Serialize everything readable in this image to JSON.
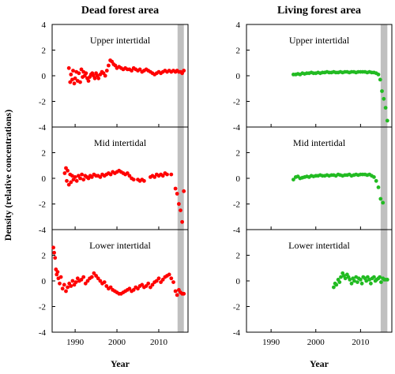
{
  "figure": {
    "ylabel": "Density (relative concentrations)"
  },
  "chart_data": [
    {
      "type": "scatter",
      "title": "Dead forest area",
      "xlabel": "Year",
      "color": "#ff0000",
      "shaded_band": [
        2014.5,
        2016.0
      ],
      "xlim": [
        1984.5,
        2017.0
      ],
      "xticks": [
        1990,
        2000,
        2010
      ],
      "ylim": [
        -4,
        4
      ],
      "yticks": [
        -4,
        -2,
        0,
        2,
        4
      ],
      "panels": [
        {
          "name": "Upper intertidal",
          "x": [
            1988.5,
            1988.8,
            1989.0,
            1989.3,
            1989.5,
            1989.8,
            1990.0,
            1990.3,
            1990.6,
            1990.9,
            1991.2,
            1991.5,
            1991.8,
            1992.0,
            1992.3,
            1992.6,
            1992.9,
            1993.2,
            1993.5,
            1993.8,
            1994.1,
            1994.4,
            1994.7,
            1995.0,
            1995.3,
            1995.6,
            1996.0,
            1996.4,
            1996.8,
            1997.2,
            1997.6,
            1998.0,
            1998.4,
            1998.8,
            1999.2,
            1999.6,
            2000.0,
            2000.5,
            2001.0,
            2001.5,
            2002.0,
            2002.5,
            2003.0,
            2003.5,
            2004.0,
            2004.5,
            2005.0,
            2005.5,
            2006.0,
            2006.5,
            2007.0,
            2007.5,
            2008.0,
            2008.5,
            2009.0,
            2009.5,
            2010.0,
            2010.5,
            2011.0,
            2011.5,
            2012.0,
            2012.5,
            2013.0,
            2013.5,
            2014.0,
            2014.4,
            2014.8,
            2015.2,
            2015.6,
            2016.0
          ],
          "y": [
            0.6,
            -0.5,
            0.1,
            -0.3,
            0.4,
            -0.6,
            -0.2,
            0.3,
            -0.4,
            0.2,
            -0.5,
            0.5,
            -0.1,
            0.3,
            0.0,
            0.2,
            -0.2,
            -0.4,
            -0.1,
            0.1,
            0.2,
            0.0,
            -0.2,
            0.2,
            0.0,
            -0.2,
            0.1,
            0.3,
            0.2,
            0.0,
            0.4,
            0.8,
            1.2,
            1.1,
            0.9,
            0.8,
            0.6,
            0.7,
            0.6,
            0.5,
            0.6,
            0.5,
            0.5,
            0.4,
            0.6,
            0.5,
            0.4,
            0.5,
            0.3,
            0.4,
            0.5,
            0.4,
            0.3,
            0.2,
            0.1,
            0.2,
            0.3,
            0.2,
            0.3,
            0.4,
            0.3,
            0.4,
            0.3,
            0.4,
            0.3,
            0.4,
            0.3,
            0.3,
            0.2,
            0.4
          ]
        },
        {
          "name": "Mid intertidal",
          "x": [
            1987.5,
            1987.8,
            1988.0,
            1988.2,
            1988.5,
            1988.8,
            1989.0,
            1989.3,
            1989.6,
            1990.0,
            1990.4,
            1990.8,
            1991.2,
            1991.6,
            1992.0,
            1992.4,
            1992.8,
            1993.2,
            1993.6,
            1994.0,
            1994.5,
            1995.0,
            1995.5,
            1996.0,
            1996.5,
            1997.0,
            1997.5,
            1998.0,
            1998.5,
            1999.0,
            1999.5,
            2000.0,
            2000.5,
            2001.0,
            2001.5,
            2002.0,
            2002.5,
            2003.0,
            2003.5,
            2004.0,
            2005.0,
            2005.5,
            2006.0,
            2006.5,
            2008.0,
            2008.5,
            2009.0,
            2009.5,
            2010.0,
            2010.5,
            2011.0,
            2011.5,
            2012.0,
            2013.0,
            2014.0,
            2014.4,
            2014.8,
            2015.2,
            2015.6,
            2016.0
          ],
          "y": [
            0.4,
            0.8,
            -0.2,
            0.6,
            -0.5,
            0.3,
            -0.3,
            0.2,
            -0.1,
            0.1,
            -0.2,
            0.2,
            0.0,
            0.3,
            -0.1,
            0.2,
            0.1,
            0.0,
            0.2,
            0.1,
            0.3,
            0.2,
            0.2,
            0.1,
            0.3,
            0.2,
            0.3,
            0.4,
            0.3,
            0.5,
            0.4,
            0.5,
            0.6,
            0.5,
            0.4,
            0.3,
            0.4,
            0.2,
            0.0,
            -0.1,
            -0.1,
            -0.2,
            -0.1,
            -0.2,
            0.1,
            0.2,
            0.1,
            0.3,
            0.2,
            0.3,
            0.2,
            0.4,
            0.3,
            0.3,
            -0.8,
            -1.2,
            -2.0,
            -2.5,
            -3.4,
            -1.0
          ]
        },
        {
          "name": "Lower intertidal",
          "x": [
            1984.8,
            1985.0,
            1985.2,
            1985.4,
            1985.6,
            1985.8,
            1986.0,
            1986.3,
            1986.6,
            1987.0,
            1987.4,
            1987.8,
            1988.2,
            1988.6,
            1989.0,
            1989.4,
            1989.8,
            1990.2,
            1990.6,
            1991.0,
            1991.5,
            1992.0,
            1992.5,
            1993.0,
            1993.5,
            1994.0,
            1994.5,
            1995.0,
            1995.5,
            1996.0,
            1996.5,
            1997.0,
            1997.5,
            1998.0,
            1998.5,
            1999.0,
            1999.5,
            2000.0,
            2000.5,
            2001.0,
            2001.5,
            2002.0,
            2002.5,
            2003.0,
            2003.5,
            2004.0,
            2004.5,
            2005.0,
            2005.5,
            2006.0,
            2006.5,
            2007.0,
            2007.5,
            2008.0,
            2008.5,
            2009.0,
            2009.5,
            2010.0,
            2010.5,
            2011.0,
            2011.5,
            2012.0,
            2012.5,
            2013.0,
            2013.5,
            2014.0,
            2014.4,
            2014.8,
            2015.2,
            2015.6,
            2016.0
          ],
          "y": [
            2.6,
            2.2,
            1.8,
            0.9,
            0.5,
            0.7,
            0.2,
            -0.2,
            0.3,
            -0.6,
            -0.3,
            -0.8,
            -0.5,
            -0.2,
            -0.4,
            0.0,
            -0.3,
            -0.1,
            0.2,
            0.0,
            0.1,
            0.3,
            -0.2,
            0.0,
            0.2,
            0.3,
            0.6,
            0.4,
            0.2,
            0.0,
            -0.2,
            -0.1,
            -0.4,
            -0.6,
            -0.5,
            -0.7,
            -0.8,
            -0.9,
            -1.0,
            -1.0,
            -0.9,
            -0.8,
            -0.7,
            -0.6,
            -0.8,
            -0.7,
            -0.5,
            -0.6,
            -0.4,
            -0.3,
            -0.5,
            -0.4,
            -0.2,
            -0.5,
            -0.3,
            -0.1,
            0.0,
            0.2,
            -0.1,
            0.1,
            0.3,
            0.4,
            0.5,
            0.2,
            -0.1,
            -0.8,
            -1.1,
            -0.7,
            -0.9,
            -1.0,
            -1.0
          ]
        }
      ]
    },
    {
      "type": "scatter",
      "title": "Living forest area",
      "xlabel": "Year",
      "color": "#22bb22",
      "shaded_band": [
        2014.5,
        2016.0
      ],
      "xlim": [
        1984.5,
        2017.0
      ],
      "xticks": [
        1990,
        2000,
        2010
      ],
      "ylim": [
        -4,
        4
      ],
      "yticks": [
        -4,
        -2,
        0,
        2,
        4
      ],
      "panels": [
        {
          "name": "Upper intertidal",
          "x": [
            1995.0,
            1995.5,
            1996.0,
            1996.5,
            1997.0,
            1997.5,
            1998.0,
            1998.5,
            1999.0,
            1999.5,
            2000.0,
            2000.5,
            2001.0,
            2001.5,
            2002.0,
            2002.5,
            2003.0,
            2003.5,
            2004.0,
            2004.5,
            2005.0,
            2005.5,
            2006.0,
            2006.5,
            2007.0,
            2007.5,
            2008.0,
            2008.5,
            2009.0,
            2009.5,
            2010.0,
            2010.5,
            2011.0,
            2011.5,
            2012.0,
            2012.5,
            2013.0,
            2013.5,
            2014.0,
            2014.4,
            2014.8,
            2015.2,
            2015.6,
            2016.0
          ],
          "y": [
            0.1,
            0.1,
            0.15,
            0.1,
            0.2,
            0.15,
            0.2,
            0.2,
            0.25,
            0.2,
            0.2,
            0.25,
            0.2,
            0.25,
            0.25,
            0.3,
            0.25,
            0.25,
            0.3,
            0.25,
            0.25,
            0.3,
            0.25,
            0.3,
            0.3,
            0.25,
            0.3,
            0.3,
            0.25,
            0.3,
            0.3,
            0.3,
            0.3,
            0.25,
            0.3,
            0.25,
            0.25,
            0.2,
            0.1,
            -0.3,
            -1.2,
            -1.8,
            -2.5,
            -3.5
          ]
        },
        {
          "name": "Mid intertidal",
          "x": [
            1995.0,
            1995.5,
            1996.0,
            1996.5,
            1997.0,
            1997.5,
            1998.0,
            1998.5,
            1999.0,
            1999.5,
            2000.0,
            2000.5,
            2001.0,
            2001.5,
            2002.0,
            2002.5,
            2003.0,
            2003.5,
            2004.0,
            2004.5,
            2005.0,
            2005.5,
            2006.0,
            2006.5,
            2007.0,
            2007.5,
            2008.0,
            2008.5,
            2009.0,
            2009.5,
            2010.0,
            2010.5,
            2011.0,
            2011.5,
            2012.0,
            2012.5,
            2013.0,
            2013.5,
            2014.0,
            2014.5,
            2015.0
          ],
          "y": [
            -0.1,
            0.1,
            0.15,
            0.0,
            0.05,
            0.1,
            0.15,
            0.1,
            0.2,
            0.15,
            0.2,
            0.2,
            0.25,
            0.2,
            0.2,
            0.25,
            0.2,
            0.25,
            0.25,
            0.2,
            0.3,
            0.25,
            0.2,
            0.25,
            0.25,
            0.3,
            0.2,
            0.25,
            0.3,
            0.25,
            0.3,
            0.3,
            0.3,
            0.25,
            0.3,
            0.2,
            0.1,
            -0.2,
            -0.7,
            -1.6,
            -1.9
          ]
        },
        {
          "name": "Lower intertidal",
          "x": [
            2004.0,
            2004.3,
            2004.6,
            2005.0,
            2005.3,
            2005.6,
            2006.0,
            2006.3,
            2006.6,
            2007.0,
            2007.3,
            2007.6,
            2008.0,
            2008.3,
            2008.6,
            2009.0,
            2009.3,
            2009.6,
            2010.0,
            2010.3,
            2010.6,
            2011.0,
            2011.3,
            2011.6,
            2012.0,
            2012.3,
            2012.6,
            2013.0,
            2013.3,
            2013.6,
            2014.0,
            2014.3,
            2014.6,
            2015.0,
            2015.3,
            2015.6,
            2016.0
          ],
          "y": [
            -0.5,
            -0.2,
            -0.3,
            0.1,
            -0.1,
            0.3,
            0.6,
            0.4,
            0.2,
            0.5,
            0.3,
            0.1,
            -0.2,
            0.2,
            0.0,
            0.3,
            -0.1,
            0.2,
            0.1,
            -0.2,
            0.3,
            0.2,
            0.0,
            0.3,
            0.1,
            -0.2,
            0.2,
            0.3,
            0.0,
            0.1,
            0.2,
            0.3,
            -0.1,
            0.2,
            0.1,
            0.1,
            0.1
          ]
        }
      ]
    }
  ]
}
